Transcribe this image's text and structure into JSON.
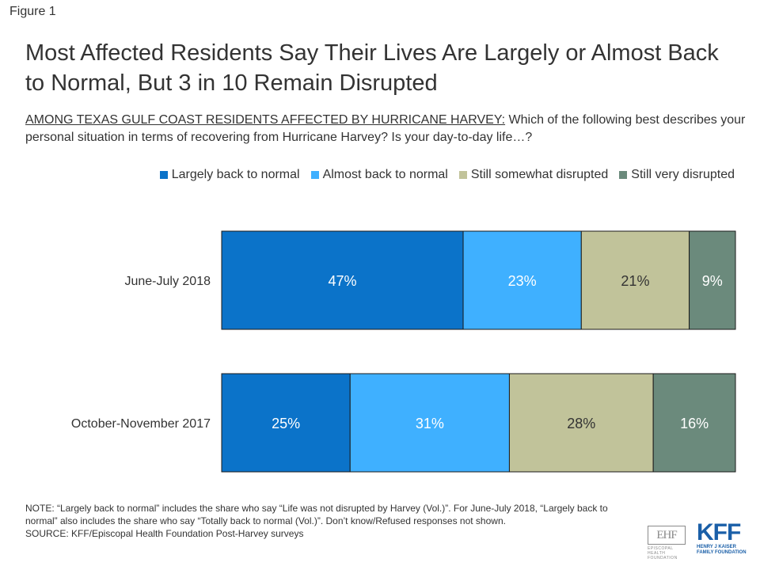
{
  "figure_label": "Figure 1",
  "chart_data": {
    "type": "bar",
    "orientation": "horizontal",
    "stacked": true,
    "title": "Most Affected Residents Say Their Lives Are Largely or Almost Back to Normal, But 3 in 10 Remain Disrupted",
    "subtitle_lead": "AMONG TEXAS GULF COAST RESIDENTS AFFECTED BY HURRICANE HARVEY:",
    "subtitle_rest": " Which of the following best describes your personal situation in terms of recovering from Hurricane Harvey? Is your day-to-day life…?",
    "categories": [
      "June-July 2018",
      "October-November 2017"
    ],
    "series": [
      {
        "name": "Largely back to normal",
        "values": [
          47,
          25
        ],
        "color": "#0b73c9"
      },
      {
        "name": "Almost back to normal",
        "values": [
          23,
          31
        ],
        "color": "#3fb0ff"
      },
      {
        "name": "Still somewhat disrupted",
        "values": [
          21,
          28
        ],
        "color": "#c1c39a"
      },
      {
        "name": "Still very disrupted",
        "values": [
          9,
          16
        ],
        "color": "#6b8a7c"
      }
    ],
    "value_suffix": "%",
    "legend_position": "top-right",
    "grid": false
  },
  "note": "NOTE: “Largely back to normal” includes the share who say “Life was not disrupted by Harvey (Vol.)”. For June-July 2018, “Largely back to normal” also includes the share who say “Totally back to normal (Vol.)”. Don’t know/Refused responses not shown.",
  "source": "SOURCE: KFF/Episcopal Health Foundation Post-Harvey surveys",
  "logos": {
    "ehf_mark": "EHF",
    "ehf_text": "EPISCOPAL HEALTH FOUNDATION",
    "kff_mark": "KFF",
    "kff_text_1": "HENRY J KAISER",
    "kff_text_2": "FAMILY FOUNDATION"
  }
}
